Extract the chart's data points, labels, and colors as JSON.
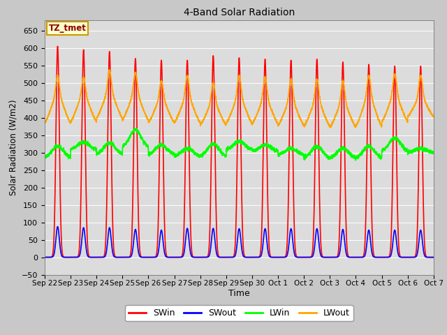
{
  "title": "4-Band Solar Radiation",
  "xlabel": "Time",
  "ylabel": "Solar Radiation (W/m2)",
  "ylim": [
    -50,
    680
  ],
  "yticks": [
    -50,
    0,
    50,
    100,
    150,
    200,
    250,
    300,
    350,
    400,
    450,
    500,
    550,
    600,
    650
  ],
  "legend_label": "TZ_tmet",
  "series": {
    "SWin": {
      "color": "#ff0000",
      "lw": 1.2
    },
    "SWout": {
      "color": "#0000ff",
      "lw": 1.2
    },
    "LWin": {
      "color": "#00ff00",
      "lw": 1.2
    },
    "LWout": {
      "color": "#ffa500",
      "lw": 1.2
    }
  },
  "x_tick_labels": [
    "Sep 22",
    "Sep 23",
    "Sep 24",
    "Sep 25",
    "Sep 26",
    "Sep 27",
    "Sep 28",
    "Sep 29",
    "Sep 30",
    "Oct 1",
    "Oct 2",
    "Oct 3",
    "Oct 4",
    "Oct 5",
    "Oct 6",
    "Oct 7"
  ],
  "n_days": 15,
  "pts_per_day": 288,
  "fig_bg": "#c8c8c8",
  "plot_bg": "#dcdcdc"
}
